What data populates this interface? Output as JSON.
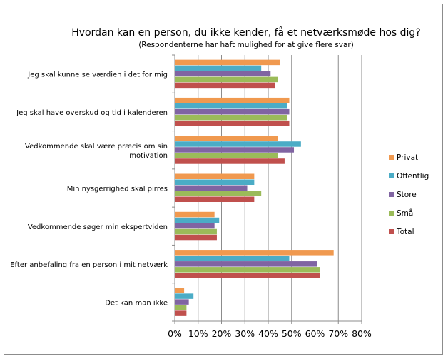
{
  "chart_data": {
    "type": "bar",
    "orientation": "horizontal",
    "title": "Hvordan kan en person, du ikke kender, få et netværksmøde hos dig?",
    "subtitle": "(Respondenterne har haft mulighed for at give flere svar)",
    "categories": [
      [
        "Jeg skal kunne se værdien i det for mig"
      ],
      [
        "Jeg skal have overskud og tid i kalenderen"
      ],
      [
        "Vedkommende skal være præcis om sin",
        "motivation"
      ],
      [
        "Min nysgerrighed skal pirres"
      ],
      [
        "Vedkommende søger min ekspertviden"
      ],
      [
        "Efter anbefaling fra en person i mit netværk"
      ],
      [
        "Det kan man ikke"
      ]
    ],
    "series": [
      {
        "name": "Privat",
        "color": "#F0994F",
        "values": [
          45,
          49,
          44,
          34,
          17,
          68,
          4
        ]
      },
      {
        "name": "Offentlig",
        "color": "#4BACC6",
        "values": [
          37,
          48,
          54,
          34,
          19,
          49,
          8
        ]
      },
      {
        "name": "Store",
        "color": "#8064A2",
        "values": [
          41,
          49,
          51,
          31,
          17,
          61,
          6
        ]
      },
      {
        "name": "Små",
        "color": "#9BBB59",
        "values": [
          44,
          48,
          44,
          37,
          18,
          62,
          5
        ]
      },
      {
        "name": "Total",
        "color": "#C0504D",
        "values": [
          43,
          49,
          47,
          34,
          18,
          62,
          5
        ]
      }
    ],
    "xlim": [
      0,
      80
    ],
    "xticks": [
      "0%",
      "10%",
      "20%",
      "30%",
      "40%",
      "50%",
      "60%",
      "70%",
      "80%"
    ],
    "grid": true,
    "legend": "right"
  }
}
